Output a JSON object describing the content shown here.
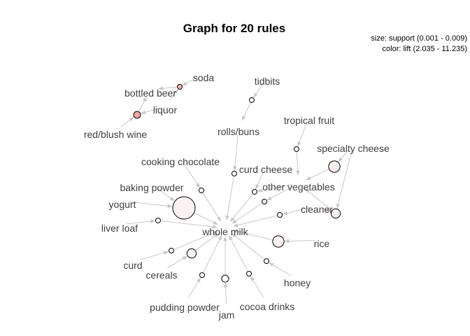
{
  "chart_data": {
    "type": "graph",
    "title": "Graph for 20 rules",
    "legend": {
      "size": "size: support (0.001 - 0.009)",
      "color": "color: lift (2.035 - 11.235)"
    },
    "items": [
      "soda",
      "bottled beer",
      "liquor",
      "red/blush wine",
      "tidbits",
      "rolls/buns",
      "tropical fruit",
      "specialty cheese",
      "cooking chocolate",
      "curd cheese",
      "other vegetables",
      "baking powder",
      "yogurt",
      "cleaner",
      "liver loaf",
      "whole milk",
      "rice",
      "curd",
      "cereals",
      "honey",
      "pudding powder",
      "cocoa drinks",
      "jam"
    ],
    "rules": [
      {
        "lhs": [
          "liquor",
          "red/blush wine"
        ],
        "rhs": "bottled beer",
        "support": 0.0019,
        "lift": 11.235,
        "fill": "#f4a7a7"
      },
      {
        "lhs": [
          "soda",
          "liquor"
        ],
        "rhs": "bottled beer",
        "support": 0.001,
        "lift": 9.5,
        "fill": "#f5b5b5"
      },
      {
        "lhs": [
          "tidbits"
        ],
        "rhs": "rolls/buns",
        "support": 0.001,
        "lift": 2.0,
        "fill": "#ffffff"
      },
      {
        "lhs": [
          "tropical fruit"
        ],
        "rhs": "other vegetables",
        "support": 0.001,
        "lift": 2.1,
        "fill": "#ffffff"
      },
      {
        "lhs": [
          "specialty cheese"
        ],
        "rhs": "other vegetables",
        "support": 0.004,
        "lift": 2.5,
        "fill": "#fbf0f0"
      },
      {
        "lhs": [
          "rolls/buns"
        ],
        "rhs": "whole milk",
        "support": 0.001,
        "lift": 2.0,
        "fill": "#ffffff"
      },
      {
        "lhs": [
          "curd cheese",
          "other vegetables"
        ],
        "rhs": "whole milk",
        "support": 0.001,
        "lift": 2.1,
        "fill": "#ffffff"
      },
      {
        "lhs": [
          "other vegetables"
        ],
        "rhs": "whole milk",
        "support": 0.001,
        "lift": 2.1,
        "fill": "#ffffff"
      },
      {
        "lhs": [
          "cleaner"
        ],
        "rhs": "whole milk",
        "support": 0.001,
        "lift": 2.1,
        "fill": "#ffffff"
      },
      {
        "lhs": [
          "cleaner",
          "specialty cheese"
        ],
        "rhs": "other vegetables",
        "support": 0.003,
        "lift": 2.3,
        "fill": "#fbf3f3"
      },
      {
        "lhs": [
          "rice"
        ],
        "rhs": "whole milk",
        "support": 0.004,
        "lift": 2.6,
        "fill": "#fbf0f0"
      },
      {
        "lhs": [
          "cooking chocolate"
        ],
        "rhs": "whole milk",
        "support": 0.001,
        "lift": 2.1,
        "fill": "#ffffff"
      },
      {
        "lhs": [
          "baking powder",
          "yogurt"
        ],
        "rhs": "whole milk",
        "support": 0.009,
        "lift": 2.4,
        "fill": "#fbf2f2"
      },
      {
        "lhs": [
          "liver loaf"
        ],
        "rhs": "whole milk",
        "support": 0.001,
        "lift": 2.0,
        "fill": "#ffffff"
      },
      {
        "lhs": [
          "curd"
        ],
        "rhs": "whole milk",
        "support": 0.001,
        "lift": 2.0,
        "fill": "#ffffff"
      },
      {
        "lhs": [
          "cereals"
        ],
        "rhs": "whole milk",
        "support": 0.003,
        "lift": 2.2,
        "fill": "#fdf4f4"
      },
      {
        "lhs": [
          "pudding powder"
        ],
        "rhs": "whole milk",
        "support": 0.001,
        "lift": 2.0,
        "fill": "#ffffff"
      },
      {
        "lhs": [
          "jam"
        ],
        "rhs": "whole milk",
        "support": 0.002,
        "lift": 2.1,
        "fill": "#ffffff"
      },
      {
        "lhs": [
          "cocoa drinks"
        ],
        "rhs": "whole milk",
        "support": 0.001,
        "lift": 2.0,
        "fill": "#ffffff"
      },
      {
        "lhs": [
          "honey"
        ],
        "rhs": "whole milk",
        "support": 0.001,
        "lift": 2.0,
        "fill": "#ffffff"
      }
    ]
  }
}
